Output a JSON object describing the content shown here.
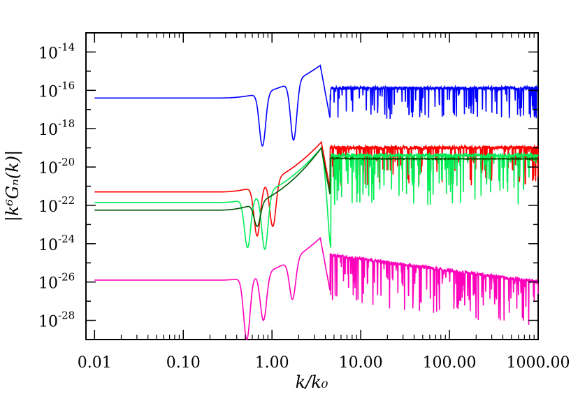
{
  "chart_data": {
    "type": "line",
    "title": "",
    "xlabel": "k/k₀",
    "ylabel": "|k⁶Gₙ(k)|",
    "xscale": "log",
    "yscale": "log",
    "xlim": [
      0.008,
      1000
    ],
    "ylim": [
      1e-29,
      1e-13
    ],
    "x_tick_labels": [
      "0.01",
      "0.10",
      "1.00",
      "10.00",
      "100.00",
      "1000.00"
    ],
    "x_tick_values": [
      0.01,
      0.1,
      1,
      10,
      100,
      1000
    ],
    "y_tick_labels": [
      {
        "base": "10",
        "exp": "-14"
      },
      {
        "base": "10",
        "exp": "-16"
      },
      {
        "base": "10",
        "exp": "-18"
      },
      {
        "base": "10",
        "exp": "-20"
      },
      {
        "base": "10",
        "exp": "-22"
      },
      {
        "base": "10",
        "exp": "-24"
      },
      {
        "base": "10",
        "exp": "-26"
      },
      {
        "base": "10",
        "exp": "-28"
      }
    ],
    "y_tick_exponents": [
      -14,
      -16,
      -18,
      -20,
      -22,
      -24,
      -26,
      -28
    ],
    "grid": false,
    "legend": "none",
    "series": [
      {
        "color": "#0000ff",
        "low_k_level_log10": -16.4,
        "dips": [
          [
            0.78,
            -18.9
          ],
          [
            1.75,
            -18.6
          ]
        ],
        "peak": [
          3.5,
          -14.7
        ],
        "oscillation_start": 4.5,
        "oscillation_top_log10": -15.8,
        "oscillation_min_log10": -17.5,
        "envelope_slope": 0.0
      },
      {
        "color": "#ff0000",
        "low_k_level_log10": -21.3,
        "dips": [
          [
            0.68,
            -23.6
          ],
          [
            1.02,
            -23.1
          ]
        ],
        "peak": [
          3.6,
          -18.7
        ],
        "oscillation_start": 4.5,
        "oscillation_top_log10": -18.9,
        "oscillation_min_log10": -21.0,
        "envelope_slope": 0.0
      },
      {
        "color": "#00ee55",
        "low_k_level_log10": -21.85,
        "dips": [
          [
            0.53,
            -24.2
          ],
          [
            0.83,
            -24.3
          ],
          [
            4.7,
            -24.3
          ]
        ],
        "peak": [
          3.6,
          -19.0
        ],
        "oscillation_start": 4.6,
        "oscillation_top_log10": -19.3,
        "oscillation_min_log10": -22.0,
        "envelope_slope": 0.0
      },
      {
        "color": "#005500",
        "low_k_level_log10": -22.25,
        "dips": [
          [
            0.68,
            -23.1
          ]
        ],
        "peak": [
          3.6,
          -19.0
        ],
        "oscillation_start": 4.5,
        "oscillation_top_log10": -19.5,
        "oscillation_min_log10": -20.1,
        "envelope_slope": 0.0,
        "settle_log10": -19.55
      },
      {
        "color": "#ff00bb",
        "low_k_level_log10": -25.9,
        "dips": [
          [
            0.52,
            -29.0
          ],
          [
            0.8,
            -28.0
          ],
          [
            1.7,
            -26.9
          ]
        ],
        "peak": [
          3.5,
          -23.7
        ],
        "oscillation_start": 4.5,
        "oscillation_top_log10": -24.5,
        "oscillation_min_log10": -27.0,
        "envelope_slope": -0.6
      }
    ]
  }
}
